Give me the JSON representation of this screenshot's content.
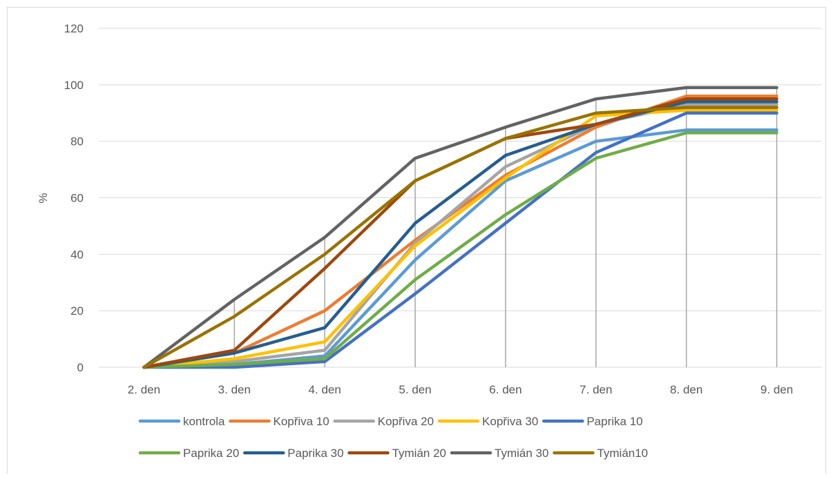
{
  "chart_data": {
    "type": "line",
    "title": "",
    "xlabel": "",
    "ylabel": "%",
    "ylim": [
      0,
      120
    ],
    "yticks": [
      0,
      20,
      40,
      60,
      80,
      100,
      120
    ],
    "grid": "horizontal gridlines; vertical drop lines at each category",
    "legend_position": "bottom",
    "categories": [
      "2. den",
      "3. den",
      "4. den",
      "5. den",
      "6. den",
      "7. den",
      "8. den",
      "9. den"
    ],
    "series": [
      {
        "name": "kontrola",
        "color": "#5b9bd5",
        "values": [
          0,
          1,
          4,
          38,
          66,
          80,
          84,
          84
        ]
      },
      {
        "name": "Kopřiva 10",
        "color": "#ed7d31",
        "values": [
          0,
          5,
          20,
          45,
          68,
          85,
          96,
          96
        ]
      },
      {
        "name": "Kopřiva 20",
        "color": "#a5a5a5",
        "values": [
          0,
          2,
          6,
          44,
          71,
          86,
          93,
          93
        ]
      },
      {
        "name": "Kopřiva 30",
        "color": "#ffc000",
        "values": [
          0,
          3,
          9,
          43,
          67,
          89,
          91,
          91
        ]
      },
      {
        "name": "Paprika 10",
        "color": "#4472c4",
        "values": [
          0,
          0,
          2,
          26,
          51,
          76,
          90,
          90
        ]
      },
      {
        "name": "Paprika 20",
        "color": "#70ad47",
        "values": [
          0,
          1,
          3,
          31,
          54,
          74,
          83,
          83
        ]
      },
      {
        "name": "Paprika 30",
        "color": "#255e91",
        "values": [
          0,
          5,
          14,
          51,
          75,
          86,
          94,
          94
        ]
      },
      {
        "name": "Tymián 20",
        "color": "#9e480e",
        "values": [
          0,
          6,
          35,
          66,
          81,
          86,
          95,
          95
        ]
      },
      {
        "name": "Tymián 30",
        "color": "#636363",
        "values": [
          0,
          24,
          46,
          74,
          85,
          95,
          99,
          99
        ]
      },
      {
        "name": "Tymián10",
        "color": "#997300",
        "values": [
          0,
          18,
          40,
          66,
          81,
          90,
          92,
          92
        ]
      }
    ]
  }
}
